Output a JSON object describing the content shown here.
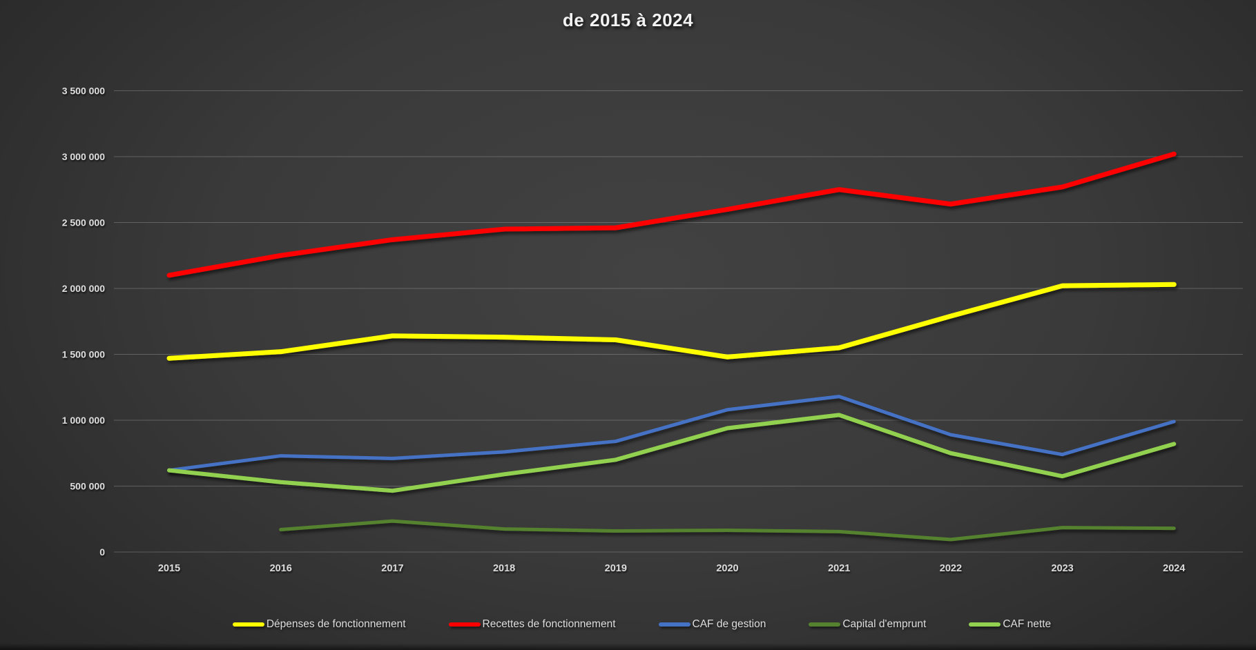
{
  "chart": {
    "title": "de 2015 à 2024"
  },
  "chart_data": {
    "type": "line",
    "title": "de 2015 à 2024",
    "categories": [
      "2015",
      "2016",
      "2017",
      "2018",
      "2019",
      "2020",
      "2021",
      "2022",
      "2023",
      "2024"
    ],
    "series": [
      {
        "name": "Dépenses de fonctionnement",
        "color": "#ffff00",
        "line_width": 7,
        "values": [
          1470000,
          1520000,
          1640000,
          1630000,
          1610000,
          1480000,
          1550000,
          1790000,
          2020000,
          2030000
        ]
      },
      {
        "name": "Recettes de fonctionnement",
        "color": "#ff0000",
        "line_width": 7,
        "values": [
          2100000,
          2250000,
          2370000,
          2450000,
          2460000,
          2600000,
          2750000,
          2640000,
          2770000,
          3020000
        ]
      },
      {
        "name": "CAF de gestion",
        "color": "#4472c4",
        "line_width": 5,
        "values": [
          620000,
          730000,
          710000,
          760000,
          840000,
          1080000,
          1180000,
          890000,
          740000,
          990000
        ]
      },
      {
        "name": "Capital d'emprunt",
        "color": "#55822e",
        "line_width": 5,
        "values": [
          null,
          170000,
          235000,
          175000,
          160000,
          165000,
          155000,
          95000,
          185000,
          180000
        ]
      },
      {
        "name": "CAF nette",
        "color": "#92d050",
        "line_width": 6,
        "values": [
          620000,
          530000,
          465000,
          590000,
          700000,
          940000,
          1040000,
          750000,
          575000,
          820000
        ]
      }
    ],
    "xlabel": "",
    "ylabel": "",
    "ylim": [
      0,
      3500000
    ],
    "ytick_step": 500000,
    "ytick_labels": [
      "0",
      "500 000",
      "1 000 000",
      "1 500 000",
      "2 000 000",
      "2 500 000",
      "3 000 000",
      "3 500 000"
    ],
    "grid": true,
    "legend_position": "bottom"
  },
  "colors": {
    "background_center": "#424242",
    "background_edge": "#242424",
    "gridline": "rgba(255,255,255,0.22)",
    "tick_text": "#dcdcdc",
    "title_text": "#f2f2f2",
    "legend_text": "#dedede"
  }
}
